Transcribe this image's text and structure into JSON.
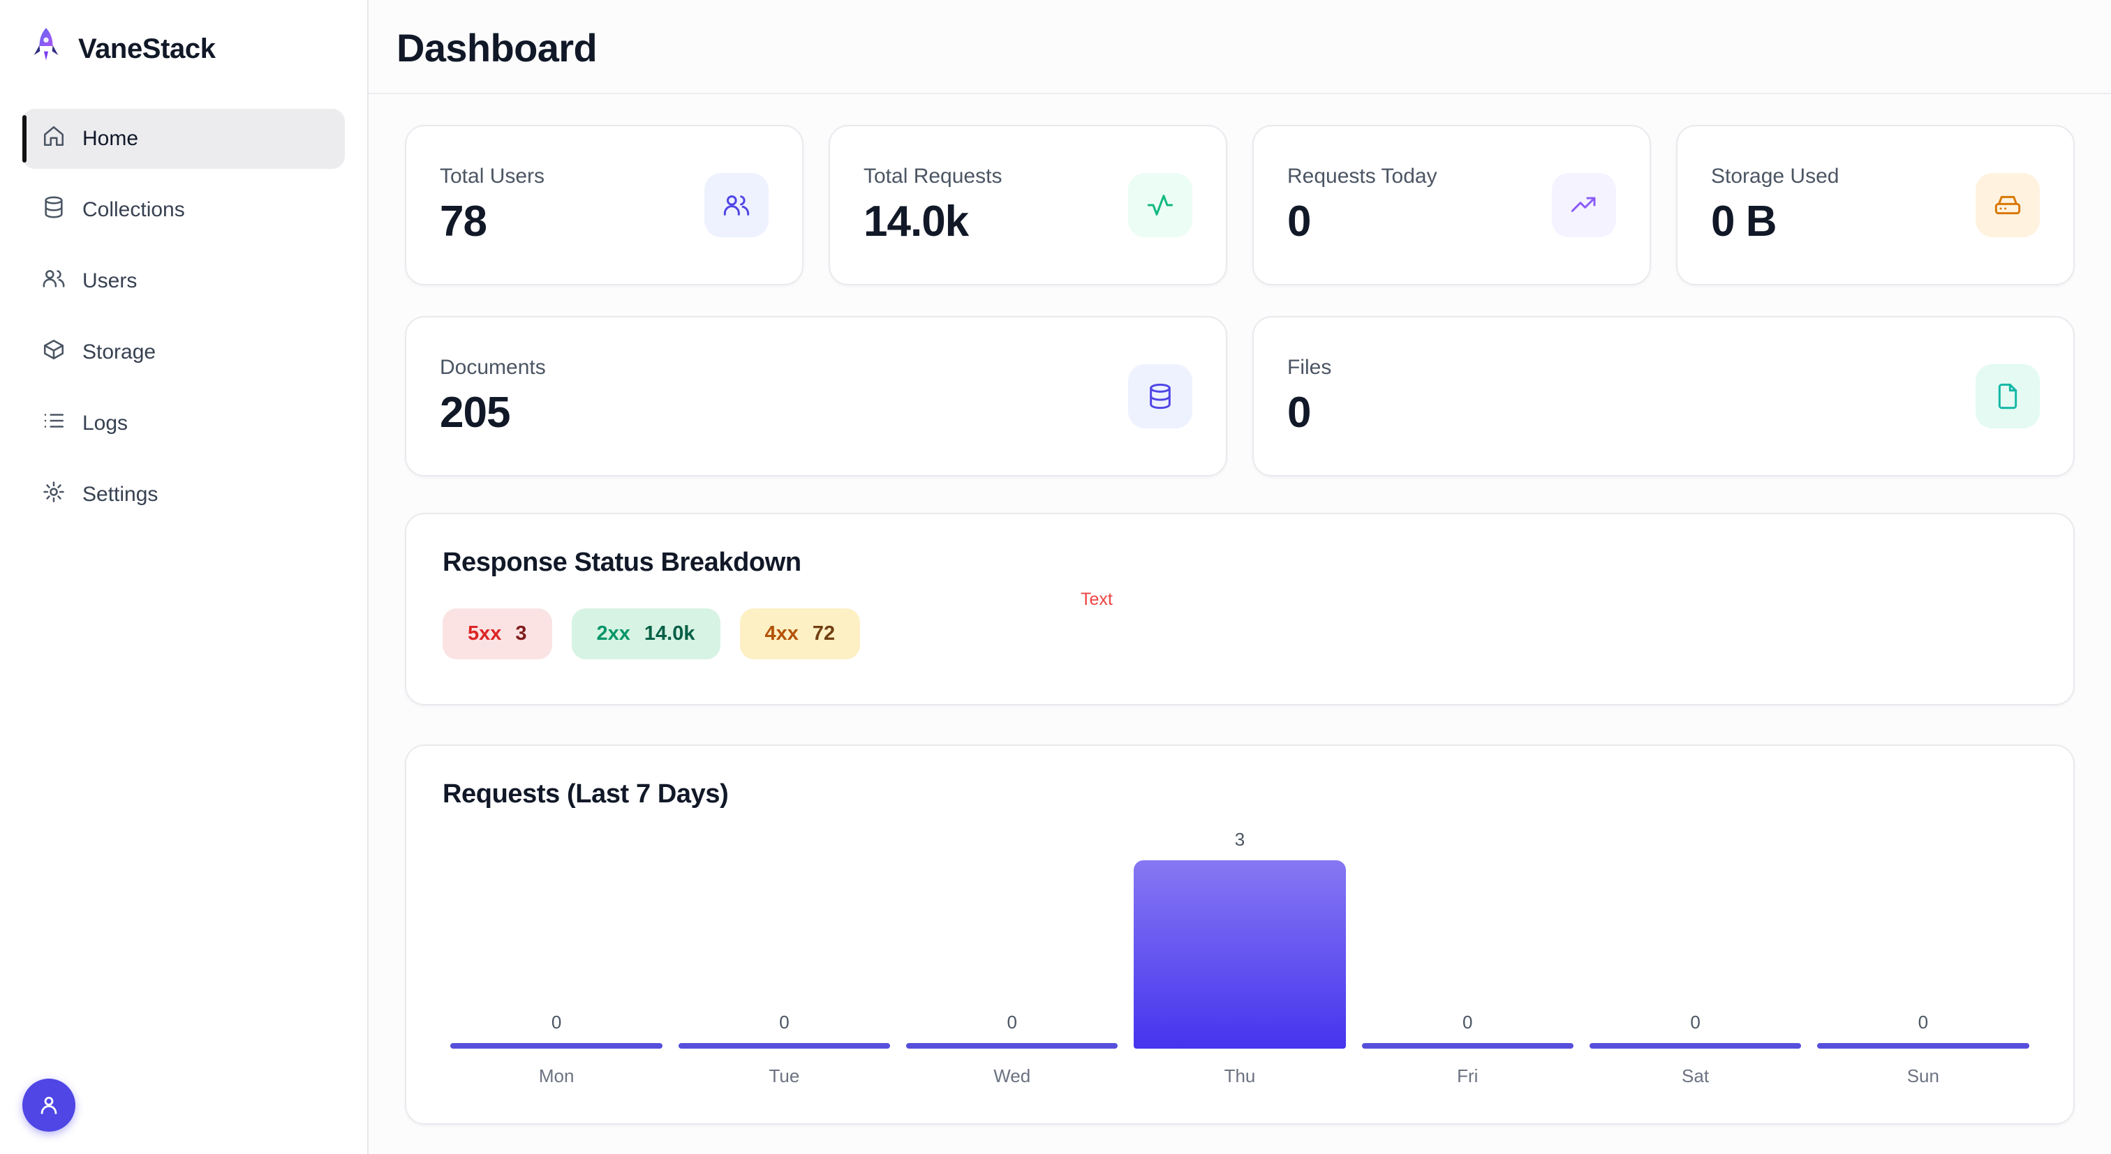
{
  "app": {
    "name": "VaneStack"
  },
  "sidebar": {
    "items": [
      {
        "label": "Home",
        "active": true
      },
      {
        "label": "Collections",
        "active": false
      },
      {
        "label": "Users",
        "active": false
      },
      {
        "label": "Storage",
        "active": false
      },
      {
        "label": "Logs",
        "active": false
      },
      {
        "label": "Settings",
        "active": false
      }
    ]
  },
  "header": {
    "title": "Dashboard"
  },
  "stats": [
    {
      "label": "Total Users",
      "value": "78",
      "icon": "users-icon"
    },
    {
      "label": "Total Requests",
      "value": "14.0k",
      "icon": "activity-icon"
    },
    {
      "label": "Requests Today",
      "value": "0",
      "icon": "trending-up-icon"
    },
    {
      "label": "Storage Used",
      "value": "0 B",
      "icon": "hard-drive-icon"
    },
    {
      "label": "Documents",
      "value": "205",
      "icon": "database-icon"
    },
    {
      "label": "Files",
      "value": "0",
      "icon": "file-icon"
    }
  ],
  "status_breakdown": {
    "title": "Response Status Breakdown",
    "overlay_text": "Text",
    "badges": [
      {
        "code": "5xx",
        "count": "3",
        "color": "#dc2626"
      },
      {
        "code": "2xx",
        "count": "14.0k",
        "color": "#059669"
      },
      {
        "code": "4xx",
        "count": "72",
        "color": "#b45309"
      }
    ]
  },
  "chart_data": {
    "type": "bar",
    "title": "Requests (Last 7 Days)",
    "categories": [
      "Mon",
      "Tue",
      "Wed",
      "Thu",
      "Fri",
      "Sat",
      "Sun"
    ],
    "values": [
      0,
      0,
      0,
      3,
      0,
      0,
      0
    ],
    "xlabel": "",
    "ylabel": "",
    "ylim": [
      0,
      3
    ],
    "grid": false,
    "legend": "none",
    "bar_color_top": "#8678f3",
    "bar_color_bottom": "#4534ee"
  },
  "colors": {
    "accent": "#4f46e5",
    "active_nav_bg": "#ececef",
    "error": "#ef4444"
  }
}
